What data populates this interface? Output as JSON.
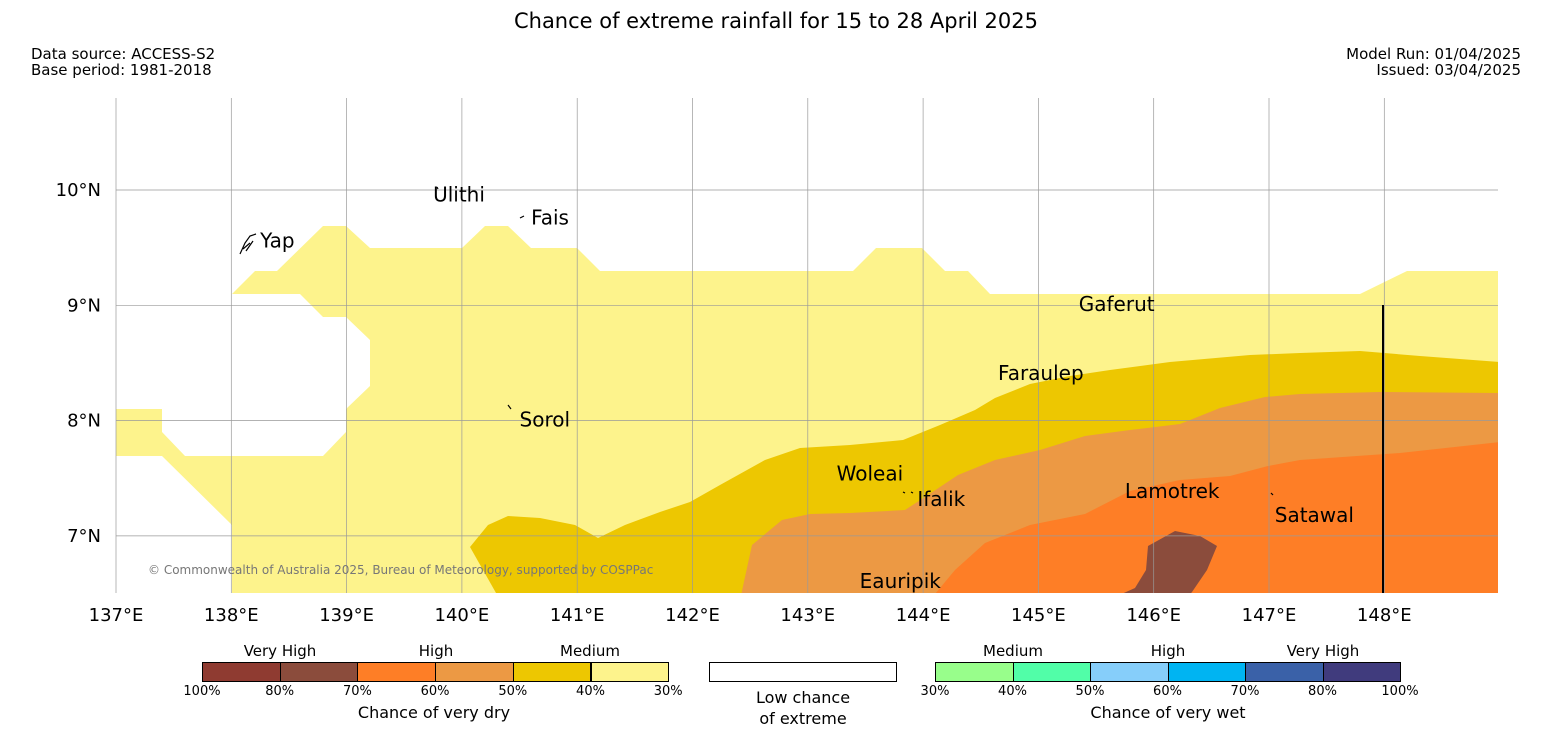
{
  "title": "Chance of extreme rainfall for 15 to 28 April 2025",
  "meta": {
    "data_source": "Data source: ACCESS-S2",
    "base_period": "Base period: 1981-2018",
    "model_run": "Model Run: 01/04/2025",
    "issued": "Issued: 03/04/2025"
  },
  "map": {
    "lon_range": [
      137,
      149
    ],
    "lat_range": [
      6.5,
      10.8
    ],
    "lon_ticks": [
      "137°E",
      "138°E",
      "139°E",
      "140°E",
      "141°E",
      "142°E",
      "143°E",
      "144°E",
      "145°E",
      "146°E",
      "147°E",
      "148°E"
    ],
    "lat_ticks": [
      "10°N",
      "9°N",
      "8°N",
      "7°N"
    ],
    "copyright": "© Commonwealth of Australia 2025, Bureau of Meteorology, supported by COSPPac",
    "places": [
      {
        "name": "Ulithi",
        "lon": 139.75,
        "lat": 9.9
      },
      {
        "name": "Fais",
        "lon": 140.6,
        "lat": 9.7
      },
      {
        "name": "Yap",
        "lon": 138.25,
        "lat": 9.5
      },
      {
        "name": "Gaferut",
        "lon": 145.35,
        "lat": 8.95
      },
      {
        "name": "Faraulep",
        "lon": 144.65,
        "lat": 8.35
      },
      {
        "name": "Sorol",
        "lon": 140.5,
        "lat": 7.95
      },
      {
        "name": "Woleai",
        "lon": 143.25,
        "lat": 7.48
      },
      {
        "name": "Ifalik",
        "lon": 143.95,
        "lat": 7.26
      },
      {
        "name": "Lamotrek",
        "lon": 145.75,
        "lat": 7.33
      },
      {
        "name": "Satawal",
        "lon": 147.05,
        "lat": 7.12
      },
      {
        "name": "Eauripik",
        "lon": 143.45,
        "lat": 6.55
      }
    ],
    "colors": {
      "dry_30_40": "#fdf38c",
      "dry_40_50": "#edc701",
      "dry_50_60": "#ec9944",
      "dry_60_70": "#fe7e26",
      "dry_70_80": "#8b4c3c"
    }
  },
  "legend": {
    "dry": {
      "categories": [
        "Very High",
        "High",
        "Medium"
      ],
      "ticks": [
        "100%",
        "80%",
        "70%",
        "60%",
        "50%",
        "40%",
        "30%"
      ],
      "colors": [
        "#8f3b31",
        "#8b4c3c",
        "#fe7e26",
        "#ec9944",
        "#edc701",
        "#fdf38c"
      ],
      "caption": "Chance of very dry"
    },
    "low": {
      "caption_line1": "Low chance",
      "caption_line2": "of extreme"
    },
    "wet": {
      "categories": [
        "Medium",
        "High",
        "Very High"
      ],
      "ticks": [
        "30%",
        "40%",
        "50%",
        "60%",
        "70%",
        "80%",
        "100%"
      ],
      "colors": [
        "#98fe8b",
        "#51fea8",
        "#86cefa",
        "#00b4f2",
        "#3a61a8",
        "#403b7d"
      ],
      "caption": "Chance of very wet"
    }
  }
}
